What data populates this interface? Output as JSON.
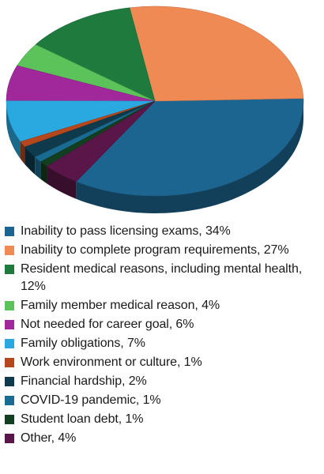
{
  "chart_data": {
    "type": "pie",
    "title": "",
    "legend_position": "bottom",
    "slices": [
      {
        "label": "Inability to pass licensing exams, 34%",
        "value": 34,
        "color": "#1d6591"
      },
      {
        "label": "Inability to complete program requirements, 27%",
        "value": 27,
        "color": "#f08a55"
      },
      {
        "label": "Resident medical reasons, including mental health, 12%",
        "value": 12,
        "color": "#1f7a3e"
      },
      {
        "label": "Family member medical reason, 4%",
        "value": 4,
        "color": "#5cc25a"
      },
      {
        "label": "Not needed for career goal, 6%",
        "value": 6,
        "color": "#a0289b"
      },
      {
        "label": "Family obligations, 7%",
        "value": 7,
        "color": "#2aa9e0"
      },
      {
        "label": "Work environment or culture, 1%",
        "value": 1,
        "color": "#b5471d"
      },
      {
        "label": "Financial hardship, 2%",
        "value": 2,
        "color": "#0e3a4c"
      },
      {
        "label": "COVID-19 pandemic, 1%",
        "value": 1,
        "color": "#1a6b91"
      },
      {
        "label": "Student loan debt, 1%",
        "value": 1,
        "color": "#123f1f"
      },
      {
        "label": "Other, 4%",
        "value": 4,
        "color": "#5b1649"
      }
    ]
  }
}
